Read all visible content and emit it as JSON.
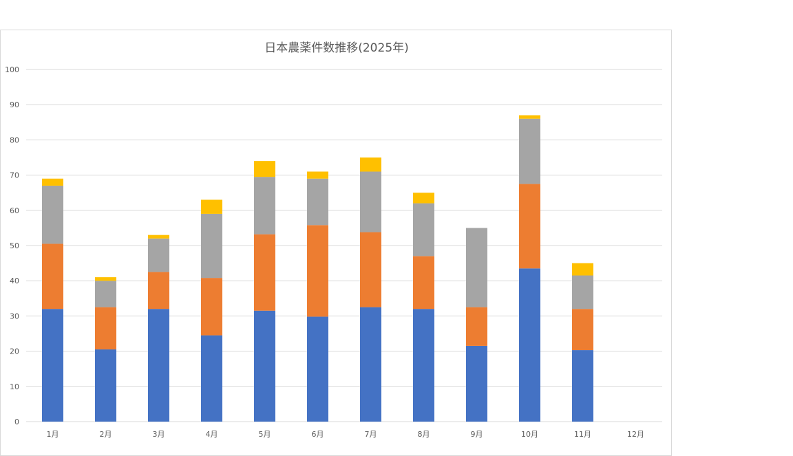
{
  "chart_data": {
    "type": "bar",
    "stacked": true,
    "title": "日本農薬件数推移(2025年)",
    "xlabel": "",
    "ylabel": "",
    "ylim": [
      0,
      100
    ],
    "yticks": [
      0,
      10,
      20,
      30,
      40,
      50,
      60,
      70,
      80,
      90,
      100
    ],
    "grid": true,
    "categories": [
      "1月",
      "2月",
      "3月",
      "4月",
      "5月",
      "6月",
      "7月",
      "8月",
      "9月",
      "10月",
      "11月",
      "12月"
    ],
    "series": [
      {
        "color": "#4472c4",
        "values": [
          32,
          20.5,
          32,
          24.5,
          31.5,
          29.8,
          32.5,
          32,
          21.5,
          43.5,
          20.3,
          0
        ]
      },
      {
        "color": "#ed7d31",
        "values": [
          18.5,
          12,
          10.5,
          16.3,
          21.7,
          26,
          21.3,
          15,
          11,
          24,
          11.7,
          0
        ]
      },
      {
        "color": "#a5a5a5",
        "values": [
          16.5,
          7.5,
          9.5,
          18.2,
          16.3,
          13.2,
          17.2,
          15,
          22.5,
          18.5,
          9.5,
          0
        ]
      },
      {
        "color": "#ffc000",
        "values": [
          2,
          1,
          1,
          4,
          4.5,
          2,
          4,
          3,
          0,
          1,
          3.5,
          0
        ]
      }
    ]
  }
}
